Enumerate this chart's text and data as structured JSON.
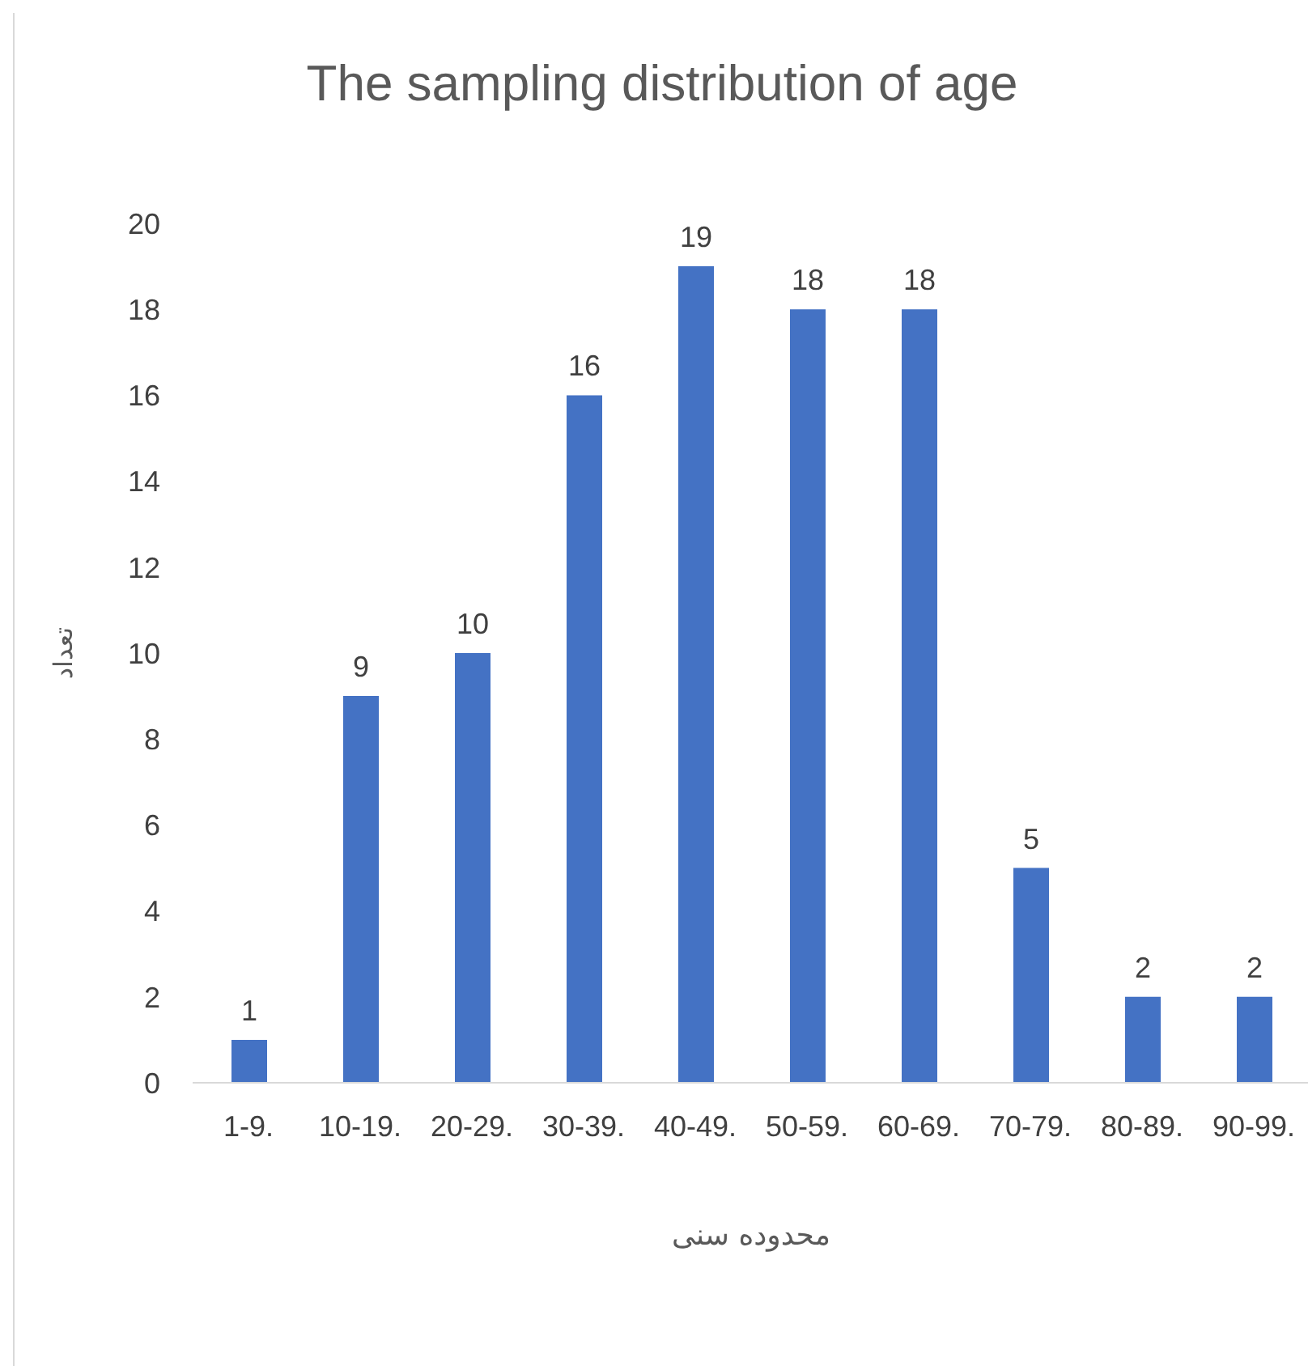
{
  "chart_data": {
    "type": "bar",
    "title": "The sampling distribution of age",
    "xlabel": "محدوده سنی",
    "ylabel": "تعداد",
    "categories": [
      "1-9.",
      "10-19.",
      "20-29.",
      "30-39.",
      "40-49.",
      "50-59.",
      "60-69.",
      "70-79.",
      "80-89.",
      "90-99."
    ],
    "values": [
      1,
      9,
      10,
      16,
      19,
      18,
      18,
      5,
      2,
      2
    ],
    "color": "#4472c4",
    "ylim": [
      0,
      20
    ],
    "yticks": [
      0,
      2,
      4,
      6,
      8,
      10,
      12,
      14,
      16,
      18,
      20
    ],
    "data_labels": true
  }
}
